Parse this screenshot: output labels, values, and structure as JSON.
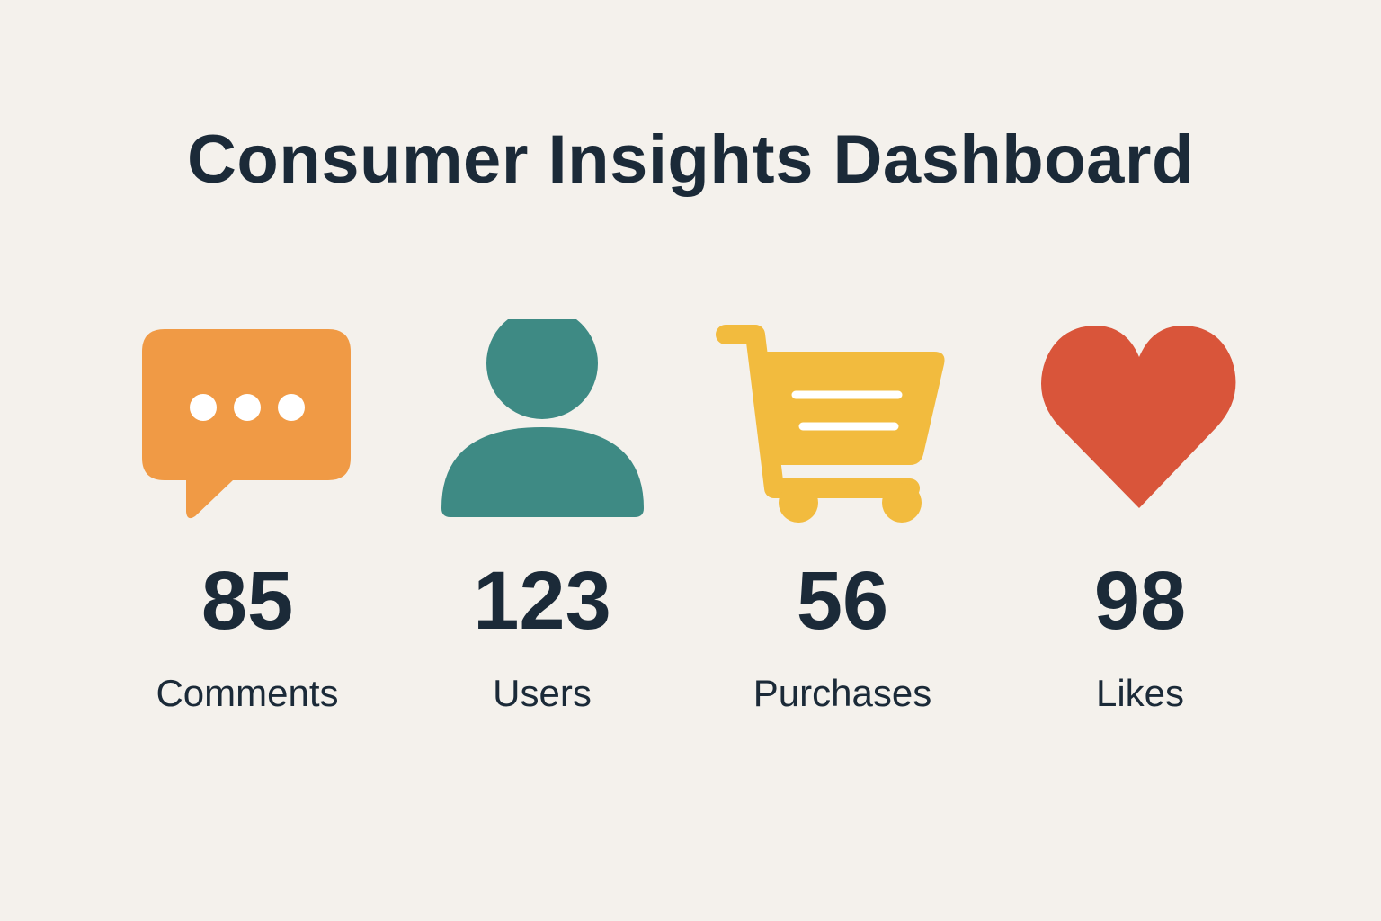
{
  "title": "Consumer Insights Dashboard",
  "colors": {
    "background": "#f4f1ec",
    "text": "#1b2a38",
    "comments": "#f09a45",
    "users": "#3e8a84",
    "purchases": "#f2bb3e",
    "likes": "#d9553a"
  },
  "stats": [
    {
      "icon": "chat-bubble-icon",
      "value": "85",
      "label": "Comments"
    },
    {
      "icon": "user-icon",
      "value": "123",
      "label": "Users"
    },
    {
      "icon": "shopping-cart-icon",
      "value": "56",
      "label": "Purchases"
    },
    {
      "icon": "heart-icon",
      "value": "98",
      "label": "Likes"
    }
  ]
}
